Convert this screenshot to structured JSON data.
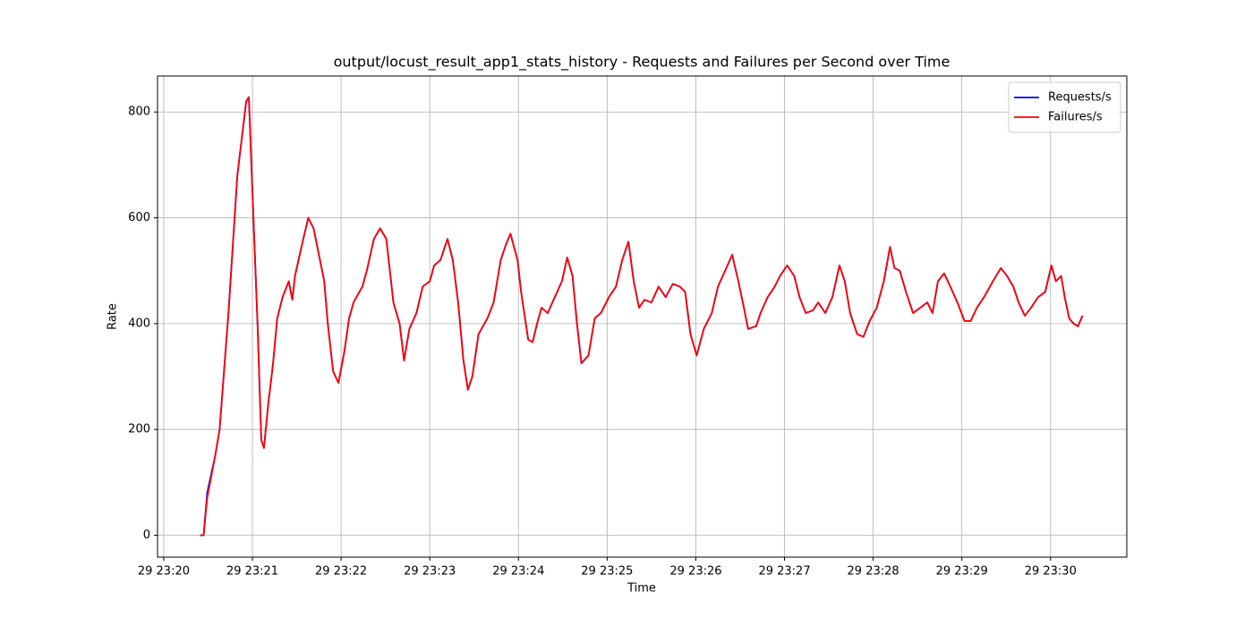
{
  "chart_data": {
    "type": "line",
    "title": "output/locust_result_app1_stats_history - Requests and Failures per Second over Time",
    "xlabel": "Time",
    "ylabel": "Rate",
    "x": [
      0.41,
      0.45,
      0.49,
      0.58,
      0.63,
      0.73,
      0.83,
      0.93,
      0.96,
      1.0,
      1.06,
      1.1,
      1.13,
      1.18,
      1.23,
      1.28,
      1.34,
      1.41,
      1.45,
      1.48,
      1.56,
      1.63,
      1.69,
      1.75,
      1.81,
      1.85,
      1.91,
      1.97,
      2.04,
      2.09,
      2.14,
      2.24,
      2.29,
      2.37,
      2.44,
      2.51,
      2.59,
      2.66,
      2.71,
      2.77,
      2.85,
      2.92,
      3.0,
      3.05,
      3.12,
      3.2,
      3.26,
      3.32,
      3.38,
      3.43,
      3.48,
      3.55,
      3.65,
      3.72,
      3.8,
      3.86,
      3.91,
      3.99,
      4.03,
      4.11,
      4.16,
      4.21,
      4.26,
      4.33,
      4.41,
      4.49,
      4.55,
      4.61,
      4.66,
      4.71,
      4.79,
      4.86,
      4.93,
      5.02,
      5.1,
      5.17,
      5.24,
      5.3,
      5.36,
      5.42,
      5.5,
      5.58,
      5.66,
      5.74,
      5.82,
      5.88,
      5.94,
      6.01,
      6.09,
      6.18,
      6.25,
      6.33,
      6.41,
      6.48,
      6.53,
      6.59,
      6.68,
      6.73,
      6.81,
      6.89,
      6.95,
      7.03,
      7.11,
      7.17,
      7.24,
      7.32,
      7.38,
      7.46,
      7.54,
      7.62,
      7.68,
      7.74,
      7.82,
      7.89,
      7.96,
      8.04,
      8.12,
      8.19,
      8.24,
      8.3,
      8.37,
      8.45,
      8.53,
      8.61,
      8.67,
      8.73,
      8.8,
      8.87,
      8.95,
      9.03,
      9.1,
      9.17,
      9.25,
      9.35,
      9.44,
      9.51,
      9.58,
      9.64,
      9.71,
      9.78,
      9.86,
      9.94,
      10.01,
      10.06,
      10.12,
      10.16,
      10.21,
      10.26,
      10.31,
      10.36
    ],
    "series": [
      {
        "name": "Requests/s",
        "color": "#0000ff",
        "values": [
          0,
          0,
          80,
          150,
          200,
          420,
          680,
          820,
          828,
          650,
          390,
          180,
          165,
          250,
          320,
          410,
          450,
          480,
          445,
          490,
          550,
          600,
          580,
          530,
          480,
          400,
          310,
          288,
          350,
          410,
          440,
          470,
          500,
          560,
          580,
          560,
          440,
          400,
          330,
          390,
          420,
          470,
          480,
          510,
          520,
          560,
          520,
          440,
          330,
          275,
          300,
          380,
          410,
          440,
          520,
          550,
          570,
          520,
          460,
          370,
          365,
          400,
          430,
          420,
          450,
          480,
          525,
          490,
          400,
          325,
          340,
          410,
          420,
          450,
          470,
          520,
          555,
          480,
          430,
          445,
          440,
          470,
          450,
          475,
          470,
          460,
          380,
          340,
          390,
          420,
          470,
          500,
          530,
          480,
          440,
          390,
          395,
          420,
          450,
          470,
          490,
          510,
          490,
          450,
          420,
          425,
          440,
          420,
          450,
          510,
          480,
          420,
          380,
          375,
          405,
          430,
          480,
          545,
          505,
          500,
          460,
          420,
          430,
          440,
          420,
          480,
          495,
          470,
          440,
          405,
          405,
          430,
          450,
          480,
          505,
          490,
          470,
          440,
          415,
          430,
          450,
          460,
          510,
          480,
          490,
          450,
          410,
          400,
          395,
          415
        ]
      },
      {
        "name": "Failures/s",
        "color": "#ff0000",
        "values": [
          0,
          0,
          70,
          150,
          200,
          420,
          680,
          820,
          828,
          650,
          390,
          180,
          165,
          250,
          320,
          410,
          450,
          480,
          445,
          490,
          550,
          600,
          580,
          530,
          480,
          400,
          310,
          288,
          350,
          410,
          440,
          470,
          500,
          560,
          580,
          560,
          440,
          400,
          330,
          390,
          420,
          470,
          480,
          510,
          520,
          560,
          520,
          440,
          330,
          275,
          300,
          380,
          410,
          440,
          520,
          550,
          570,
          520,
          460,
          370,
          365,
          400,
          430,
          420,
          450,
          480,
          525,
          490,
          400,
          325,
          340,
          410,
          420,
          450,
          470,
          520,
          555,
          480,
          430,
          445,
          440,
          470,
          450,
          475,
          470,
          460,
          380,
          340,
          390,
          420,
          470,
          500,
          530,
          480,
          440,
          390,
          395,
          420,
          450,
          470,
          490,
          510,
          490,
          450,
          420,
          425,
          440,
          420,
          450,
          510,
          480,
          420,
          380,
          375,
          405,
          430,
          480,
          545,
          505,
          500,
          460,
          420,
          430,
          440,
          420,
          480,
          495,
          470,
          440,
          405,
          405,
          430,
          450,
          480,
          505,
          490,
          470,
          440,
          415,
          430,
          450,
          460,
          510,
          480,
          490,
          450,
          410,
          400,
          395,
          415
        ]
      }
    ],
    "xlim": [
      -0.07,
      10.86
    ],
    "xticks": [
      {
        "value": 0,
        "label": "29 23:20"
      },
      {
        "value": 1,
        "label": "29 23:21"
      },
      {
        "value": 2,
        "label": "29 23:22"
      },
      {
        "value": 3,
        "label": "29 23:23"
      },
      {
        "value": 4,
        "label": "29 23:24"
      },
      {
        "value": 5,
        "label": "29 23:25"
      },
      {
        "value": 6,
        "label": "29 23:26"
      },
      {
        "value": 7,
        "label": "29 23:27"
      },
      {
        "value": 8,
        "label": "29 23:28"
      },
      {
        "value": 9,
        "label": "29 23:29"
      },
      {
        "value": 10,
        "label": "29 23:30"
      }
    ],
    "ylim": [
      -41.4,
      868
    ],
    "yticks": [
      0,
      200,
      400,
      600,
      800
    ],
    "grid": true,
    "legend": "upper right"
  }
}
